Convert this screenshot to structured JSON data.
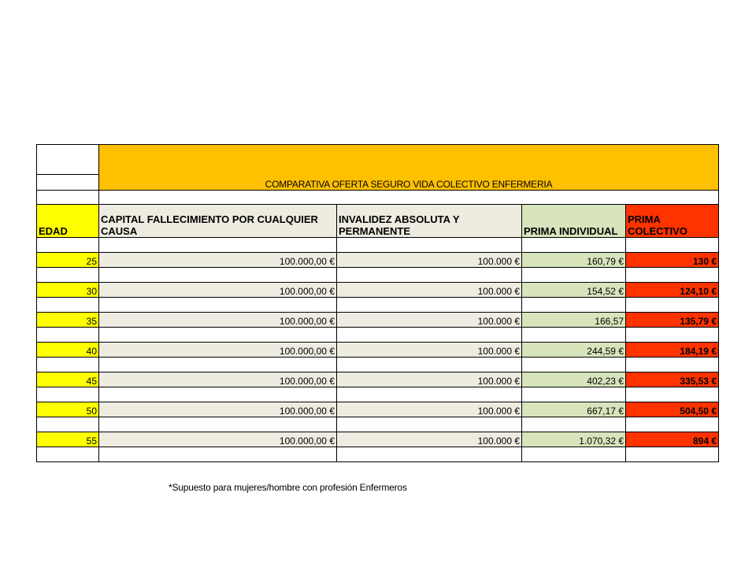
{
  "title": "COMPARATIVA OFERTA SEGURO VIDA COLECTIVO ENFERMERIA",
  "headers": {
    "edad": "EDAD",
    "capital": "CAPITAL FALLECIMIENTO POR CUALQUIER CAUSA",
    "invalidez": "INVALIDEZ ABSOLUTA Y PERMANENTE",
    "individual": "PRIMA INDIVIDUAL",
    "colectivo": "PRIMA COLECTIVO"
  },
  "rows": [
    {
      "edad": "25",
      "capital": "100.000,00 €",
      "invalidez": "100.000 €",
      "individual": "160,79 €",
      "colectivo": "130 €"
    },
    {
      "edad": "30",
      "capital": "100.000,00 €",
      "invalidez": "100.000 €",
      "individual": "154,52 €",
      "colectivo": "124,10 €"
    },
    {
      "edad": "35",
      "capital": "100.000,00 €",
      "invalidez": "100.000 €",
      "individual": "166,57",
      "colectivo": "135,79 €"
    },
    {
      "edad": "40",
      "capital": "100.000,00 €",
      "invalidez": "100.000 €",
      "individual": "244,59 €",
      "colectivo": "184,19 €"
    },
    {
      "edad": "45",
      "capital": "100.000,00 €",
      "invalidez": "100.000 €",
      "individual": "402,23 €",
      "colectivo": "335,53 €"
    },
    {
      "edad": "50",
      "capital": "100.000,00 €",
      "invalidez": "100.000 €",
      "individual": "667,17 €",
      "colectivo": "504,50 €"
    },
    {
      "edad": "55",
      "capital": "100.000,00 €",
      "invalidez": "100.000 €",
      "individual": "1.070,32 €",
      "colectivo": "894 €"
    }
  ],
  "note": "*Supuesto para mujeres/hombre con profesión Enfermeros",
  "colors": {
    "title_bg": "#ffc000",
    "edad_bg": "#ffff00",
    "beige_bg": "#eeece1",
    "green_bg": "#d7e4bc",
    "red_bg": "#ff3300"
  }
}
